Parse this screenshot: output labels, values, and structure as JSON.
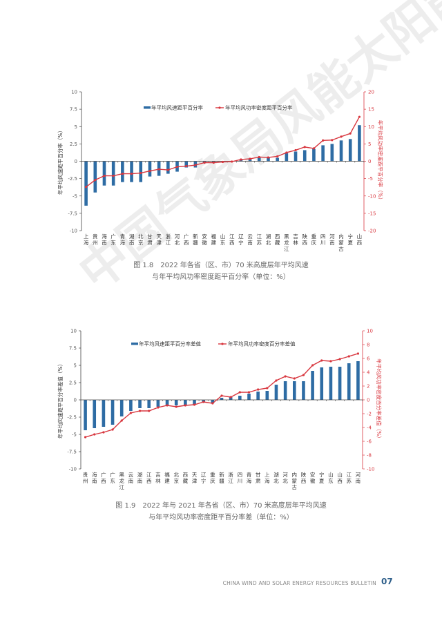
{
  "watermark": "中国气象局风能太阳能中心",
  "colors": {
    "bar": "#2e6ca4",
    "line": "#d8363e",
    "axis_right": "#d8363e"
  },
  "chart_data": [
    {
      "type": "bar+line",
      "caption_line1": "图 1.8　2022 年各省（区、市）70 米高度层年平均风速",
      "caption_line2": "与年平均风功率密度距平百分率（单位：%）",
      "ylabel": "年平均风速距平百分率（%）",
      "ylabel_right": "年平均风功率密度距平百分率（%）",
      "ylim": [
        -10,
        10
      ],
      "yticks": [
        "10",
        "7.5",
        "5",
        "2.5",
        "0",
        "-2.5",
        "-5",
        "-7.5",
        "-10"
      ],
      "ylim_right": [
        -20,
        20
      ],
      "yticks_right": [
        "20",
        "15",
        "10",
        "5",
        "0",
        "-5",
        "-10",
        "-15",
        "-20"
      ],
      "legend_position": "top",
      "categories": [
        "上海",
        "贵州",
        "海南",
        "广东",
        "青海",
        "湖南",
        "北京",
        "甘肃",
        "天津",
        "浙江",
        "河北",
        "广西",
        "新疆",
        "安徽",
        "福建",
        "山东",
        "江西",
        "辽宁",
        "云南",
        "江苏",
        "湖北",
        "西藏",
        "黑龙江",
        "吉林",
        "陕西",
        "重庆",
        "四川",
        "河南",
        "内蒙古",
        "宁夏",
        "山西"
      ],
      "series": [
        {
          "name": "年平均风速距平百分率",
          "type": "bar",
          "axis": "left",
          "values": [
            -6.4,
            -4.5,
            -3.5,
            -3.5,
            -3.0,
            -3.0,
            -3.0,
            -2.2,
            -2.1,
            -1.8,
            -1.5,
            -0.9,
            -0.9,
            -0.2,
            -0.2,
            -0.1,
            0.0,
            0.2,
            0.3,
            0.5,
            0.5,
            0.5,
            1.2,
            1.4,
            1.6,
            1.8,
            2.3,
            2.5,
            3.0,
            3.2,
            5.2
          ]
        },
        {
          "name": "年平均风功率密度距平百分率",
          "type": "line",
          "axis": "right",
          "values": [
            -7.4,
            -5.4,
            -4.2,
            -4.2,
            -3.6,
            -3.6,
            -3.4,
            -2.8,
            -2.3,
            -2.5,
            -1.6,
            -1.4,
            -1.1,
            -0.4,
            -0.4,
            -0.2,
            -0.1,
            0.5,
            0.7,
            1.2,
            1.1,
            1.4,
            2.5,
            3.2,
            4.1,
            3.7,
            6.0,
            6.1,
            7.1,
            8.0,
            12.8
          ]
        }
      ]
    },
    {
      "type": "bar+line",
      "caption_line1": "图 1.9　2022 年与 2021 年各省（区、市）70 米高度层年平均风速",
      "caption_line2": "与年平均风功率密度距平百分率差（单位：%）",
      "ylabel": "年平均风速距平百分率差值（%）",
      "ylabel_right": "年平均风功率密度百分率差值（%）",
      "ylim": [
        -10,
        10
      ],
      "yticks": [
        "10",
        "7.5",
        "5",
        "2.5",
        "0",
        "-2.5",
        "-5",
        "-7.5",
        "-10"
      ],
      "ylim_right": [
        -10,
        10
      ],
      "yticks_right": [
        "10",
        "8",
        "6",
        "4",
        "2",
        "0",
        "-2",
        "-4",
        "-6",
        "-8",
        "-10"
      ],
      "legend_position": "top",
      "categories": [
        "贵州",
        "海南",
        "广西",
        "广东",
        "黑龙江",
        "云南",
        "湖南",
        "江西",
        "吉林",
        "福建",
        "北京",
        "西藏",
        "天津",
        "辽宁",
        "重庆",
        "新疆",
        "浙江",
        "四川",
        "青海",
        "甘肃",
        "上海",
        "湖北",
        "河北",
        "内蒙古",
        "陕西",
        "安徽",
        "宁夏",
        "山东",
        "山西",
        "江苏",
        "河南"
      ],
      "series": [
        {
          "name": "年平均风速距平百分率差值",
          "type": "bar",
          "axis": "left",
          "values": [
            -4.4,
            -4.1,
            -3.9,
            -3.6,
            -2.4,
            -1.6,
            -1.2,
            -1.2,
            -1.0,
            -0.8,
            -0.8,
            -0.8,
            -0.7,
            -0.4,
            -0.5,
            0.3,
            0.4,
            0.6,
            0.9,
            1.2,
            1.3,
            2.2,
            2.7,
            2.7,
            2.7,
            4.2,
            4.7,
            4.8,
            4.8,
            5.3,
            5.6
          ]
        },
        {
          "name": "年平均风功率密度百分率差值",
          "type": "line",
          "axis": "right",
          "values": [
            -5.4,
            -5.0,
            -4.7,
            -4.3,
            -3.0,
            -1.9,
            -1.6,
            -1.6,
            -1.1,
            -0.8,
            -1.0,
            -0.8,
            -0.7,
            -0.3,
            -0.5,
            0.6,
            0.4,
            1.1,
            1.1,
            1.5,
            1.7,
            2.8,
            3.4,
            3.1,
            3.6,
            5.0,
            5.7,
            5.6,
            5.9,
            6.3,
            6.7
          ]
        }
      ]
    }
  ],
  "footer": {
    "bulletin": "CHINA WIND AND SOLAR ENERGY RESOURCES BULLETIN",
    "page_number": "07"
  }
}
